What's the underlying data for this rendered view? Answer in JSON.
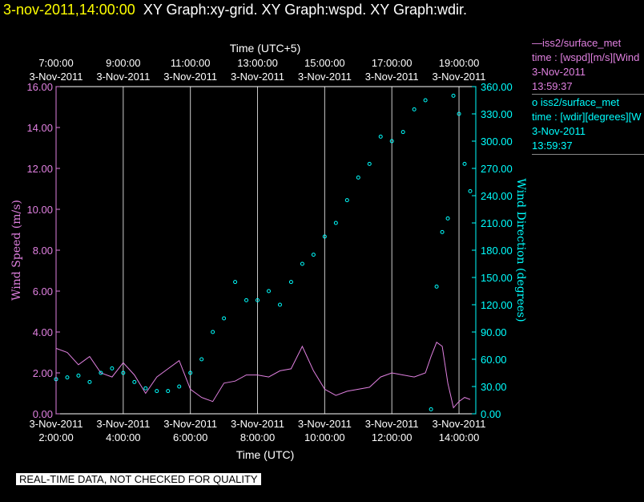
{
  "header": {
    "date_time": "3-nov-2011,14:00:00",
    "graph_titles": "XY Graph:xy-grid.  XY Graph:wspd.  XY Graph:wdir."
  },
  "legend": [
    {
      "line_prefix": "—",
      "station": "iss2/surface_met",
      "field": "time : [wspd][m/s][Wind",
      "date": "3-Nov-2011",
      "time": "13:59:37",
      "color": "#e080e0"
    },
    {
      "line_prefix": "o ",
      "station": "iss2/surface_met",
      "field": "time : [wdir][degrees][W",
      "date": "3-Nov-2011",
      "time": "13:59:37",
      "color": "#00ffff"
    }
  ],
  "footer": {
    "quality_note": "REAL-TIME DATA, NOT CHECKED FOR QUALITY"
  },
  "chart_data": {
    "type": "line",
    "xlabel": "Time (UTC)",
    "x2label": "Time (UTC+5)",
    "ylabel": "Wind Speed (m/s)",
    "y2label": "Wind Direction (degrees)",
    "xlim": [
      "02:00",
      "14:30"
    ],
    "ylim": [
      0,
      16
    ],
    "y2lim": [
      0,
      360
    ],
    "x_ticks_bottom": [
      {
        "date": "3-Nov-2011",
        "time": "2:00:00"
      },
      {
        "date": "3-Nov-2011",
        "time": "4:00:00"
      },
      {
        "date": "3-Nov-2011",
        "time": "6:00:00"
      },
      {
        "date": "3-Nov-2011",
        "time": "8:00:00"
      },
      {
        "date": "3-Nov-2011",
        "time": "10:00:00"
      },
      {
        "date": "3-Nov-2011",
        "time": "12:00:00"
      },
      {
        "date": "3-Nov-2011",
        "time": "14:00:00"
      }
    ],
    "x_ticks_top": [
      {
        "date": "3-Nov-2011",
        "time": "7:00:00"
      },
      {
        "date": "3-Nov-2011",
        "time": "9:00:00"
      },
      {
        "date": "3-Nov-2011",
        "time": "11:00:00"
      },
      {
        "date": "3-Nov-2011",
        "time": "13:00:00"
      },
      {
        "date": "3-Nov-2011",
        "time": "15:00:00"
      },
      {
        "date": "3-Nov-2011",
        "time": "17:00:00"
      },
      {
        "date": "3-Nov-2011",
        "time": "19:00:00"
      }
    ],
    "y_ticks_left": [
      "0.00",
      "2.00",
      "4.00",
      "6.00",
      "8.00",
      "10.00",
      "12.00",
      "14.00",
      "16.00"
    ],
    "y_ticks_right": [
      "0.00",
      "30.00",
      "60.00",
      "90.00",
      "120.00",
      "150.00",
      "180.00",
      "210.00",
      "240.00",
      "270.00",
      "300.00",
      "330.00",
      "360.00"
    ],
    "grid": "vertical",
    "series": [
      {
        "name": "iss2/surface_met time : [wspd][m/s]",
        "style": "line",
        "axis": "left",
        "color": "#e080e0",
        "x": [
          "02:00",
          "02:20",
          "02:40",
          "03:00",
          "03:20",
          "03:40",
          "04:00",
          "04:20",
          "04:40",
          "05:00",
          "05:20",
          "05:40",
          "06:00",
          "06:20",
          "06:40",
          "07:00",
          "07:20",
          "07:40",
          "08:00",
          "08:20",
          "08:40",
          "09:00",
          "09:20",
          "09:40",
          "10:00",
          "10:20",
          "10:40",
          "11:00",
          "11:20",
          "11:40",
          "12:00",
          "12:20",
          "12:40",
          "13:00",
          "13:10",
          "13:20",
          "13:30",
          "13:40",
          "13:50",
          "14:00",
          "14:10",
          "14:20"
        ],
        "y": [
          3.2,
          3.0,
          2.4,
          2.8,
          2.0,
          1.8,
          2.5,
          1.9,
          1.0,
          1.8,
          2.2,
          2.6,
          1.2,
          0.8,
          0.6,
          1.5,
          1.6,
          1.9,
          1.9,
          1.8,
          2.1,
          2.2,
          3.3,
          2.1,
          1.2,
          0.9,
          1.1,
          1.2,
          1.3,
          1.8,
          2.0,
          1.9,
          1.8,
          2.0,
          2.8,
          3.5,
          3.3,
          1.5,
          0.3,
          0.6,
          0.8,
          0.7
        ]
      },
      {
        "name": "iss2/surface_met time : [wdir][degrees]",
        "style": "markers",
        "axis": "right",
        "color": "#00ffff",
        "x": [
          "02:00",
          "02:20",
          "02:40",
          "03:00",
          "03:20",
          "03:40",
          "04:00",
          "04:20",
          "04:40",
          "05:00",
          "05:20",
          "05:40",
          "06:00",
          "06:20",
          "06:40",
          "07:00",
          "07:20",
          "07:40",
          "08:00",
          "08:20",
          "08:40",
          "09:00",
          "09:20",
          "09:40",
          "10:00",
          "10:20",
          "10:40",
          "11:00",
          "11:20",
          "11:40",
          "12:00",
          "12:20",
          "12:40",
          "13:00",
          "13:10",
          "13:20",
          "13:30",
          "13:40",
          "13:50",
          "14:00",
          "14:10",
          "14:20"
        ],
        "y": [
          38,
          40,
          42,
          35,
          45,
          50,
          45,
          35,
          28,
          25,
          25,
          30,
          45,
          60,
          90,
          105,
          145,
          125,
          125,
          135,
          120,
          145,
          165,
          175,
          195,
          210,
          235,
          260,
          275,
          305,
          300,
          310,
          335,
          345,
          5,
          140,
          200,
          215,
          350,
          330,
          275,
          245
        ]
      }
    ]
  }
}
